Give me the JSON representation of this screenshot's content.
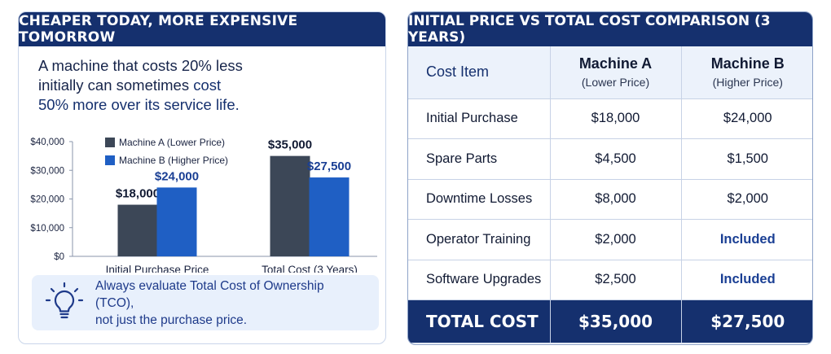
{
  "left": {
    "title": "CHEAPER TODAY, MORE EXPENSIVE TOMORROW",
    "intro_line1": "A machine that costs 20% less",
    "intro_line2_a": "initially can sometimes ",
    "intro_line2_b": "cost",
    "intro_line3": "50% more over its service life.",
    "tip_line1": "Always evaluate Total Cost of Ownership (TCO),",
    "tip_line2": "not just the purchase price.",
    "tip_icon": "lightbulb-icon"
  },
  "chart_data": {
    "type": "bar",
    "categories": [
      "Initial Purchase Price",
      "Total Cost (3 Years)"
    ],
    "series": [
      {
        "name": "Machine A (Lower Price)",
        "color": "#3c4757",
        "values": [
          18000,
          35000
        ],
        "labels": [
          "$18,000",
          "$35,000"
        ]
      },
      {
        "name": "Machine B (Higher Price)",
        "color": "#1f5fc4",
        "values": [
          24000,
          27500
        ],
        "labels": [
          "$24,000",
          "$27,500"
        ]
      }
    ],
    "yticks": [
      "$0",
      "$10,000",
      "$20,000",
      "$30,000",
      "$40,000"
    ],
    "ylim": [
      0,
      40000
    ],
    "legend": "top-left",
    "grid": false
  },
  "right": {
    "title": "INITIAL PRICE VS TOTAL COST COMPARISON (3 YEARS)",
    "header": {
      "item": "Cost Item",
      "a_name": "Machine A",
      "a_sub": "(Lower Price)",
      "b_name": "Machine B",
      "b_sub": "(Higher Price)"
    },
    "rows": [
      {
        "item": "Initial Purchase",
        "a": "$18,000",
        "b": "$24,000"
      },
      {
        "item": "Spare Parts",
        "a": "$4,500",
        "b": "$1,500"
      },
      {
        "item": "Downtime Losses",
        "a": "$8,000",
        "b": "$2,000"
      },
      {
        "item": "Operator Training",
        "a": "$2,000",
        "b": "Included"
      },
      {
        "item": "Software Upgrades",
        "a": "$2,500",
        "b": "Included"
      }
    ],
    "total": {
      "item": "TOTAL COST",
      "a": "$35,000",
      "b": "$27,500"
    }
  }
}
